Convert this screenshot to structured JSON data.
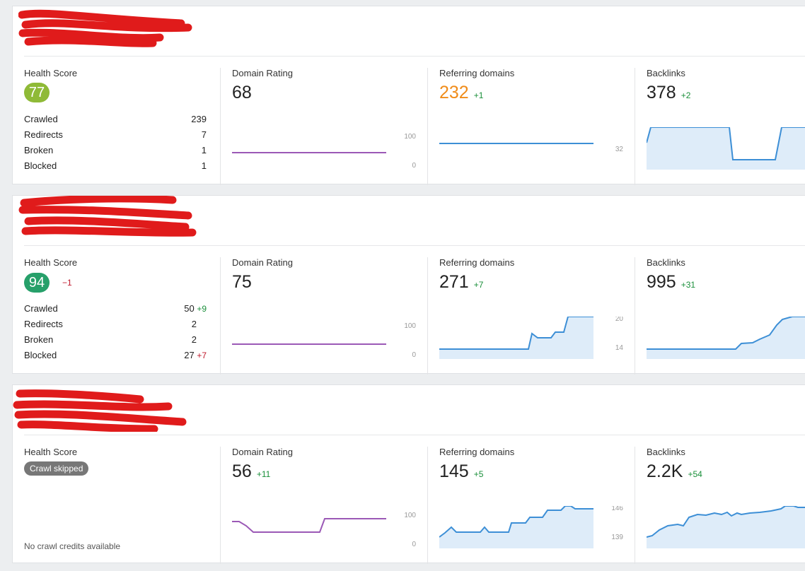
{
  "projects": [
    {
      "health": {
        "title": "Health Score",
        "score": "77",
        "score_color": "#8fba37",
        "delta": "",
        "skipped": "",
        "note": "",
        "stats": [
          {
            "label": "Crawled",
            "value": "239",
            "delta": "",
            "delta_kind": ""
          },
          {
            "label": "Redirects",
            "value": "7",
            "delta": "",
            "delta_kind": ""
          },
          {
            "label": "Broken",
            "value": "1",
            "delta": "",
            "delta_kind": ""
          },
          {
            "label": "Blocked",
            "value": "1",
            "delta": "",
            "delta_kind": ""
          }
        ]
      },
      "dr": {
        "title": "Domain Rating",
        "value": "68",
        "delta": "",
        "axis_top": "100",
        "axis_bottom": "0"
      },
      "rd": {
        "title": "Referring domains",
        "value": "232",
        "value_color": "orange",
        "delta": "+1",
        "axis_top": "32",
        "axis_bottom": ""
      },
      "bl": {
        "title": "Backlinks",
        "value": "378",
        "delta": "+2"
      }
    },
    {
      "health": {
        "title": "Health Score",
        "score": "94",
        "score_color": "#27a06a",
        "delta": "−1",
        "skipped": "",
        "note": "",
        "stats": [
          {
            "label": "Crawled",
            "value": "50",
            "delta": "+9",
            "delta_kind": "pos"
          },
          {
            "label": "Redirects",
            "value": "2",
            "delta": "",
            "delta_kind": ""
          },
          {
            "label": "Broken",
            "value": "2",
            "delta": "",
            "delta_kind": ""
          },
          {
            "label": "Blocked",
            "value": "27",
            "delta": "+7",
            "delta_kind": "neg"
          }
        ]
      },
      "dr": {
        "title": "Domain Rating",
        "value": "75",
        "delta": "",
        "axis_top": "100",
        "axis_bottom": "0"
      },
      "rd": {
        "title": "Referring domains",
        "value": "271",
        "value_color": "",
        "delta": "+7",
        "axis_top": "20",
        "axis_bottom": "14"
      },
      "bl": {
        "title": "Backlinks",
        "value": "995",
        "delta": "+31"
      }
    },
    {
      "health": {
        "title": "Health Score",
        "score": "",
        "score_color": "",
        "delta": "",
        "skipped": "Crawl skipped",
        "note": "No crawl credits available",
        "stats": []
      },
      "dr": {
        "title": "Domain Rating",
        "value": "56",
        "delta": "+11",
        "axis_top": "100",
        "axis_bottom": "0"
      },
      "rd": {
        "title": "Referring domains",
        "value": "145",
        "value_color": "",
        "delta": "+5",
        "axis_top": "146",
        "axis_bottom": "139"
      },
      "bl": {
        "title": "Backlinks",
        "value": "2.2K",
        "delta": "+54"
      }
    }
  ],
  "colors": {
    "dr_line": "#9b59b6",
    "area_line": "#3d8fd6",
    "area_fill": "#cfe3f6",
    "redaction": "#e01b1b"
  }
}
